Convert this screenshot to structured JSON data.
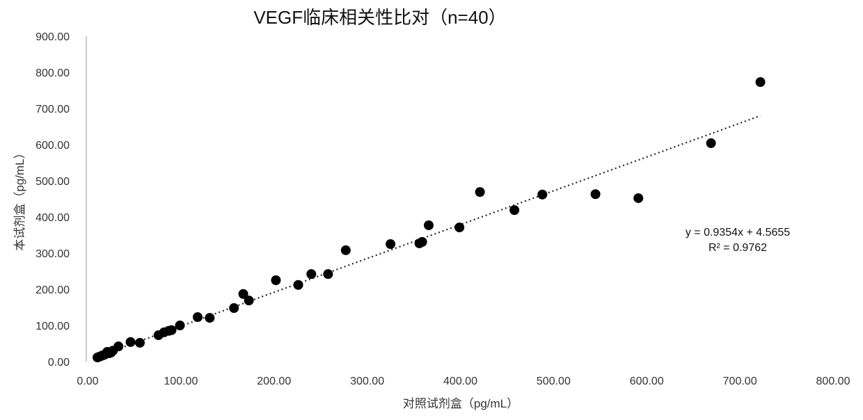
{
  "chart_data": {
    "type": "scatter",
    "title": "VEGF临床相关性比对（n=40）",
    "xlabel": "对照试剂盒（pg/mL）",
    "ylabel": "本试剂盒（pg/mL）",
    "xlim": [
      0,
      800
    ],
    "ylim": [
      0,
      900
    ],
    "xticks": [
      "0.00",
      "100.00",
      "200.00",
      "300.00",
      "400.00",
      "500.00",
      "600.00",
      "700.00",
      "800.00"
    ],
    "yticks": [
      "0.00",
      "100.00",
      "200.00",
      "300.00",
      "400.00",
      "500.00",
      "600.00",
      "700.00",
      "800.00",
      "900.00"
    ],
    "grid": false,
    "marker_color": "#000000",
    "points": [
      [
        10.5,
        11.5
      ],
      [
        12.7,
        13.5
      ],
      [
        14,
        15
      ],
      [
        16,
        17
      ],
      [
        18,
        19
      ],
      [
        20,
        22
      ],
      [
        21,
        27
      ],
      [
        23,
        23
      ],
      [
        25,
        25
      ],
      [
        27,
        30
      ],
      [
        33,
        42
      ],
      [
        46,
        54
      ],
      [
        56,
        52
      ],
      [
        76,
        73
      ],
      [
        82,
        81
      ],
      [
        87,
        85
      ],
      [
        90,
        87
      ],
      [
        99,
        100
      ],
      [
        118,
        123
      ],
      [
        131,
        121
      ],
      [
        157,
        148
      ],
      [
        167,
        187
      ],
      [
        173,
        169
      ],
      [
        202,
        225
      ],
      [
        226,
        212
      ],
      [
        240,
        242
      ],
      [
        258,
        242
      ],
      [
        277,
        308
      ],
      [
        325,
        325
      ],
      [
        356,
        327
      ],
      [
        359,
        331
      ],
      [
        366,
        377
      ],
      [
        399,
        371
      ],
      [
        421,
        469
      ],
      [
        458,
        419
      ],
      [
        488,
        462
      ],
      [
        545,
        463
      ],
      [
        591,
        452
      ],
      [
        669,
        604
      ],
      [
        722,
        773
      ]
    ],
    "trendline": {
      "type": "linear",
      "slope": 0.9354,
      "intercept": 4.5655,
      "x_range": [
        10,
        722
      ],
      "style": "dotted",
      "equation_label": "y = 0.9354x + 4.5655",
      "r2_label": "R² = 0.9762"
    }
  }
}
